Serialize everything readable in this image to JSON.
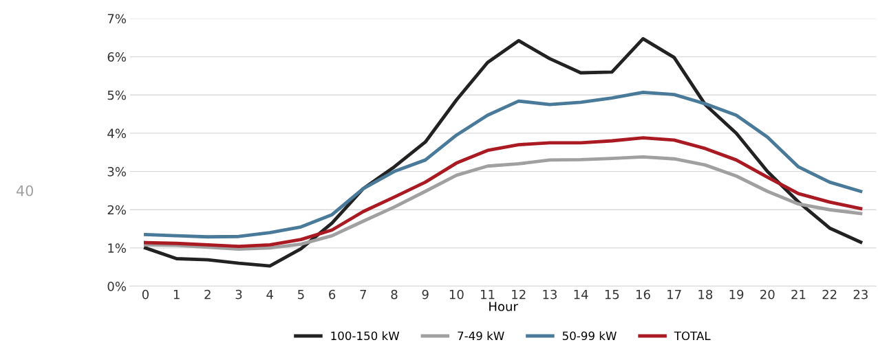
{
  "chart_data": {
    "type": "line",
    "xlabel": "Hour",
    "categories": [
      "0",
      "1",
      "2",
      "3",
      "4",
      "5",
      "6",
      "7",
      "8",
      "9",
      "10",
      "11",
      "12",
      "13",
      "14",
      "15",
      "16",
      "17",
      "18",
      "19",
      "20",
      "21",
      "22",
      "23"
    ],
    "series": [
      {
        "name": "100-150 kW",
        "color": "#222222",
        "values": [
          1.0,
          0.72,
          0.69,
          0.6,
          0.53,
          0.98,
          1.65,
          2.55,
          3.12,
          3.77,
          4.87,
          5.85,
          6.42,
          5.95,
          5.58,
          5.6,
          6.47,
          5.98,
          4.75,
          4.0,
          3.0,
          2.2,
          1.52,
          1.15
        ]
      },
      {
        "name": "7-49 kW",
        "color": "#a0a0a0",
        "values": [
          1.08,
          1.07,
          1.02,
          0.97,
          1.0,
          1.1,
          1.32,
          1.7,
          2.07,
          2.48,
          2.9,
          3.14,
          3.2,
          3.3,
          3.31,
          3.34,
          3.38,
          3.33,
          3.17,
          2.88,
          2.48,
          2.15,
          2.0,
          1.9
        ]
      },
      {
        "name": "50-99 kW",
        "color": "#4a7a99",
        "values": [
          1.35,
          1.32,
          1.29,
          1.3,
          1.4,
          1.55,
          1.87,
          2.55,
          3.0,
          3.3,
          3.95,
          4.47,
          4.84,
          4.75,
          4.81,
          4.92,
          5.07,
          5.01,
          4.77,
          4.47,
          3.9,
          3.12,
          2.72,
          2.48
        ]
      },
      {
        "name": "TOTAL",
        "color": "#aa1a22",
        "values": [
          1.14,
          1.12,
          1.08,
          1.04,
          1.08,
          1.22,
          1.47,
          1.95,
          2.33,
          2.72,
          3.22,
          3.55,
          3.7,
          3.75,
          3.75,
          3.8,
          3.88,
          3.82,
          3.6,
          3.3,
          2.85,
          2.42,
          2.2,
          2.03
        ]
      }
    ],
    "ylim": [
      0,
      7
    ],
    "yticks": [
      {
        "value": 0,
        "label": "0%"
      },
      {
        "value": 1,
        "label": "1%"
      },
      {
        "value": 2,
        "label": "2%"
      },
      {
        "value": 3,
        "label": "3%"
      },
      {
        "value": 4,
        "label": "4%"
      },
      {
        "value": 5,
        "label": "5%"
      },
      {
        "value": 6,
        "label": "6%"
      },
      {
        "value": 7,
        "label": "7%"
      }
    ],
    "grid": "y",
    "legend": "bottom",
    "marker": "none",
    "line_style": "solid",
    "annotations": [
      "40"
    ]
  }
}
